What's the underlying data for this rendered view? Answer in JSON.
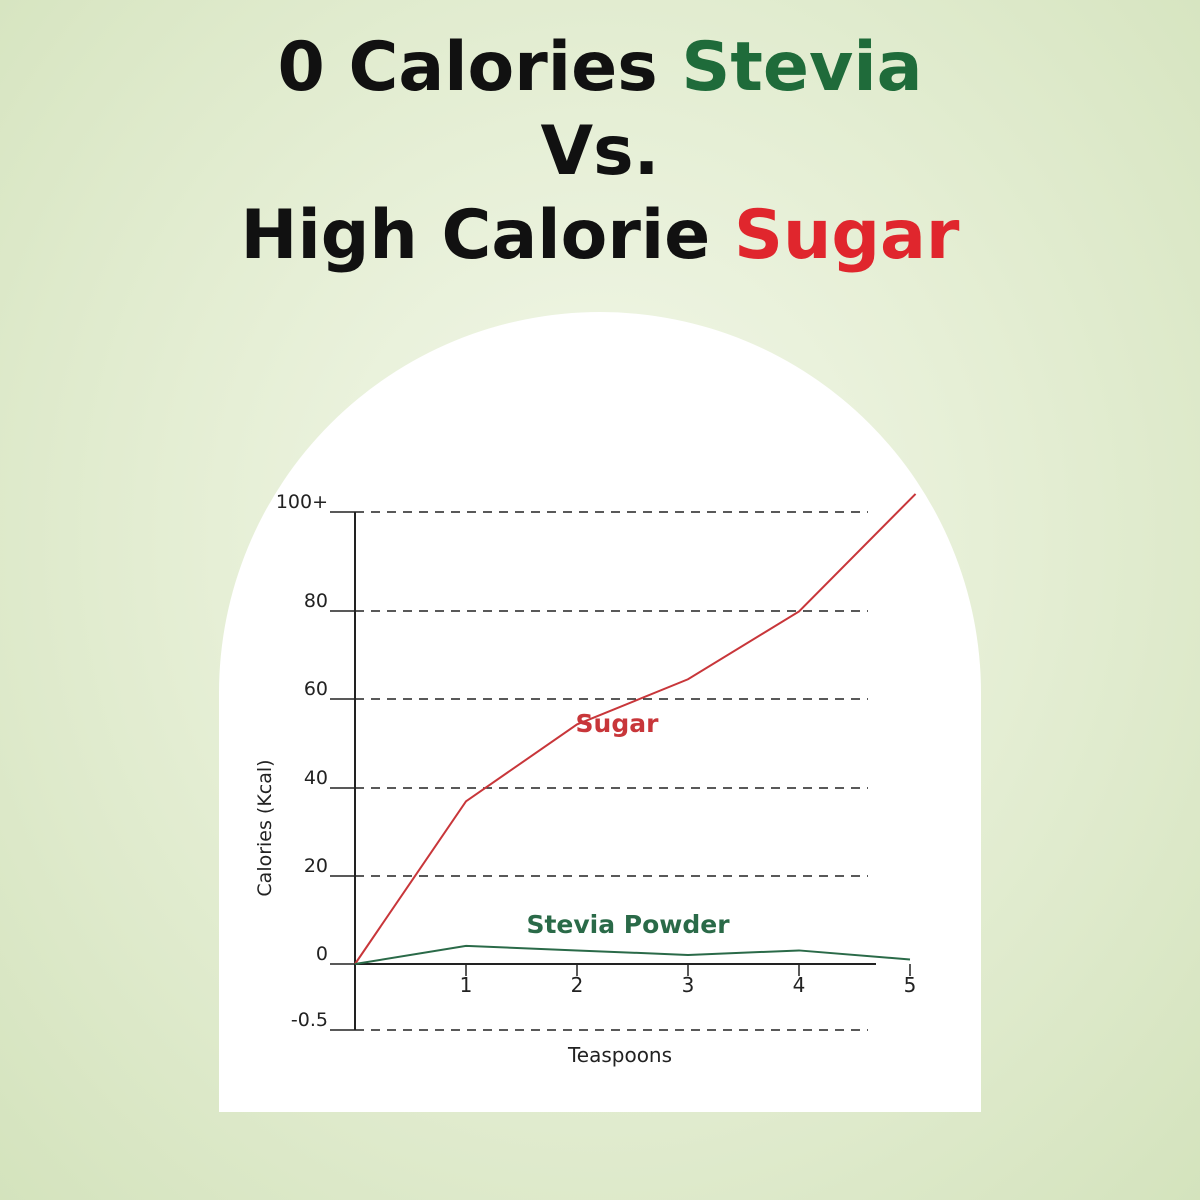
{
  "title": {
    "line1_prefix": "0 Calories ",
    "line1_highlight": "Stevia",
    "line2": "Vs.",
    "line3_prefix": "High Calorie ",
    "line3_highlight": "Sugar"
  },
  "colors": {
    "stevia": "#1f6b3a",
    "sugar": "#e0262d",
    "sugar_line": "#c8363a",
    "stevia_line": "#2a6a48",
    "axis": "#222222"
  },
  "chart_data": {
    "type": "line",
    "xlabel": "Teaspoons",
    "ylabel": "Calories (Kcal)",
    "x_ticks": [
      "1",
      "2",
      "3",
      "4",
      "5"
    ],
    "y_ticks": [
      {
        "value": 100,
        "label": "100+"
      },
      {
        "value": 80,
        "label": "80"
      },
      {
        "value": 60,
        "label": "60"
      },
      {
        "value": 40,
        "label": "40"
      },
      {
        "value": 20,
        "label": "20"
      },
      {
        "value": 0,
        "label": "0"
      },
      {
        "value": -0.5,
        "label": "-0.5"
      }
    ],
    "grid": "dashed horizontal",
    "series": [
      {
        "name": "Sugar",
        "x": [
          0,
          1,
          2,
          3,
          4,
          5.05
        ],
        "y": [
          0,
          36,
          53,
          63,
          78,
          104
        ]
      },
      {
        "name": "Stevia Powder",
        "x": [
          0,
          1,
          2,
          3,
          4,
          5
        ],
        "y": [
          0,
          4,
          3,
          2,
          3,
          1
        ]
      }
    ]
  }
}
